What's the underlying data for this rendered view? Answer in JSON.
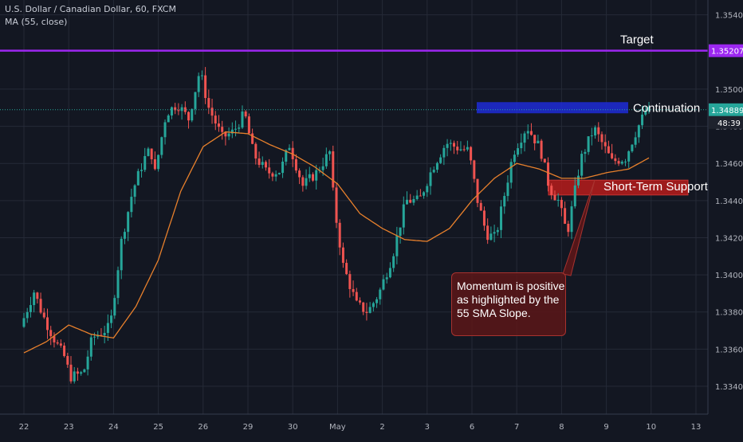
{
  "legend": {
    "symbol": "U.S. Dollar / Canadian Dollar, 60, FXCM",
    "indicator": "MA (55, close)"
  },
  "colors": {
    "background": "#131722",
    "grid": "#252a37",
    "up_candle": "#26a69a",
    "down_candle": "#ef5350",
    "ma_line": "#e8802c",
    "target_line": "#9c27f0",
    "last_price_line": "#26a69a",
    "continuation_zone": "#1f2bd6",
    "support_zone": "#b71c1c",
    "callout_fill": "#5c1618",
    "axis_text": "#b2b5be"
  },
  "chart_data": {
    "type": "candlestick",
    "instrument": "U.S. Dollar / Canadian Dollar",
    "timeframe": "60",
    "source": "FXCM",
    "ylim": [
      1.3325,
      1.3548
    ],
    "y_ticks": [
      "1.33400",
      "1.33600",
      "1.33800",
      "1.34000",
      "1.34200",
      "1.34400",
      "1.34600",
      "1.34800",
      "1.35000",
      "1.35400"
    ],
    "x_ticks": [
      "22",
      "23",
      "24",
      "25",
      "26",
      "29",
      "30",
      "May",
      "2",
      "3",
      "6",
      "7",
      "8",
      "9",
      "10",
      "13"
    ],
    "price_labels": [
      {
        "value": 1.35207,
        "text": "1.35207",
        "color": "#9c27f0"
      },
      {
        "value": 1.34889,
        "text": "1.34889",
        "color": "#26a69a"
      }
    ],
    "countdown_label": "48:39",
    "overlays": {
      "target": {
        "label": "Target",
        "price": 1.35207
      },
      "continuation": {
        "label": "Continuation",
        "price_low": 1.3487,
        "price_high": 1.3493
      },
      "support": {
        "label": "Short-Term Support",
        "price_low": 1.3443,
        "price_high": 1.3451
      }
    },
    "annotation": {
      "lines": [
        "Momentum is positive",
        "as highlighted by the",
        "55 SMA Slope."
      ]
    },
    "price_path": [
      {
        "x": 0.0,
        "y": 1.3372
      },
      {
        "x": 0.3,
        "y": 1.3391
      },
      {
        "x": 0.5,
        "y": 1.3378
      },
      {
        "x": 0.8,
        "y": 1.3363
      },
      {
        "x": 1.0,
        "y": 1.3355
      },
      {
        "x": 1.1,
        "y": 1.3345
      },
      {
        "x": 1.4,
        "y": 1.3347
      },
      {
        "x": 1.6,
        "y": 1.3366
      },
      {
        "x": 2.0,
        "y": 1.3372
      },
      {
        "x": 2.25,
        "y": 1.3418
      },
      {
        "x": 2.5,
        "y": 1.3445
      },
      {
        "x": 2.75,
        "y": 1.3462
      },
      {
        "x": 2.9,
        "y": 1.3468
      },
      {
        "x": 3.0,
        "y": 1.3455
      },
      {
        "x": 3.25,
        "y": 1.3487
      },
      {
        "x": 3.5,
        "y": 1.3492
      },
      {
        "x": 3.75,
        "y": 1.3484
      },
      {
        "x": 4.0,
        "y": 1.351
      },
      {
        "x": 4.2,
        "y": 1.349
      },
      {
        "x": 4.5,
        "y": 1.3474
      },
      {
        "x": 4.75,
        "y": 1.3477
      },
      {
        "x": 5.0,
        "y": 1.3487
      },
      {
        "x": 5.2,
        "y": 1.3465
      },
      {
        "x": 5.5,
        "y": 1.3455
      },
      {
        "x": 5.8,
        "y": 1.3456
      },
      {
        "x": 6.0,
        "y": 1.347
      },
      {
        "x": 6.3,
        "y": 1.3448
      },
      {
        "x": 6.6,
        "y": 1.3455
      },
      {
        "x": 6.9,
        "y": 1.3466
      },
      {
        "x": 7.0,
        "y": 1.3437
      },
      {
        "x": 7.2,
        "y": 1.3405
      },
      {
        "x": 7.5,
        "y": 1.3384
      },
      {
        "x": 7.75,
        "y": 1.338
      },
      {
        "x": 8.0,
        "y": 1.339
      },
      {
        "x": 8.3,
        "y": 1.341
      },
      {
        "x": 8.6,
        "y": 1.344
      },
      {
        "x": 8.9,
        "y": 1.344
      },
      {
        "x": 9.2,
        "y": 1.3458
      },
      {
        "x": 9.5,
        "y": 1.3471
      },
      {
        "x": 9.8,
        "y": 1.3468
      },
      {
        "x": 10.0,
        "y": 1.3467
      },
      {
        "x": 10.2,
        "y": 1.344
      },
      {
        "x": 10.4,
        "y": 1.3422
      },
      {
        "x": 10.6,
        "y": 1.342
      },
      {
        "x": 11.0,
        "y": 1.3466
      },
      {
        "x": 11.3,
        "y": 1.348
      },
      {
        "x": 11.6,
        "y": 1.3468
      },
      {
        "x": 11.8,
        "y": 1.3447
      },
      {
        "x": 12.0,
        "y": 1.344
      },
      {
        "x": 12.2,
        "y": 1.3422
      },
      {
        "x": 12.5,
        "y": 1.3462
      },
      {
        "x": 12.8,
        "y": 1.3479
      },
      {
        "x": 13.0,
        "y": 1.347
      },
      {
        "x": 13.2,
        "y": 1.3461
      },
      {
        "x": 13.5,
        "y": 1.3463
      },
      {
        "x": 13.75,
        "y": 1.3478
      },
      {
        "x": 13.95,
        "y": 1.3488
      }
    ],
    "ma_path": [
      {
        "x": 0.0,
        "y": 1.3358
      },
      {
        "x": 0.5,
        "y": 1.3364
      },
      {
        "x": 1.0,
        "y": 1.3373
      },
      {
        "x": 1.5,
        "y": 1.3368
      },
      {
        "x": 2.0,
        "y": 1.3366
      },
      {
        "x": 2.5,
        "y": 1.3383
      },
      {
        "x": 3.0,
        "y": 1.3408
      },
      {
        "x": 3.5,
        "y": 1.3445
      },
      {
        "x": 4.0,
        "y": 1.3469
      },
      {
        "x": 4.5,
        "y": 1.3477
      },
      {
        "x": 5.0,
        "y": 1.3476
      },
      {
        "x": 5.5,
        "y": 1.347
      },
      {
        "x": 6.0,
        "y": 1.3465
      },
      {
        "x": 6.5,
        "y": 1.3458
      },
      {
        "x": 7.0,
        "y": 1.3449
      },
      {
        "x": 7.5,
        "y": 1.3433
      },
      {
        "x": 8.0,
        "y": 1.3425
      },
      {
        "x": 8.5,
        "y": 1.3419
      },
      {
        "x": 9.0,
        "y": 1.3418
      },
      {
        "x": 9.5,
        "y": 1.3425
      },
      {
        "x": 10.0,
        "y": 1.344
      },
      {
        "x": 10.5,
        "y": 1.3452
      },
      {
        "x": 11.0,
        "y": 1.346
      },
      {
        "x": 11.5,
        "y": 1.3457
      },
      {
        "x": 12.0,
        "y": 1.3452
      },
      {
        "x": 12.5,
        "y": 1.3452
      },
      {
        "x": 13.0,
        "y": 1.3455
      },
      {
        "x": 13.5,
        "y": 1.3457
      },
      {
        "x": 13.95,
        "y": 1.3463
      }
    ]
  }
}
